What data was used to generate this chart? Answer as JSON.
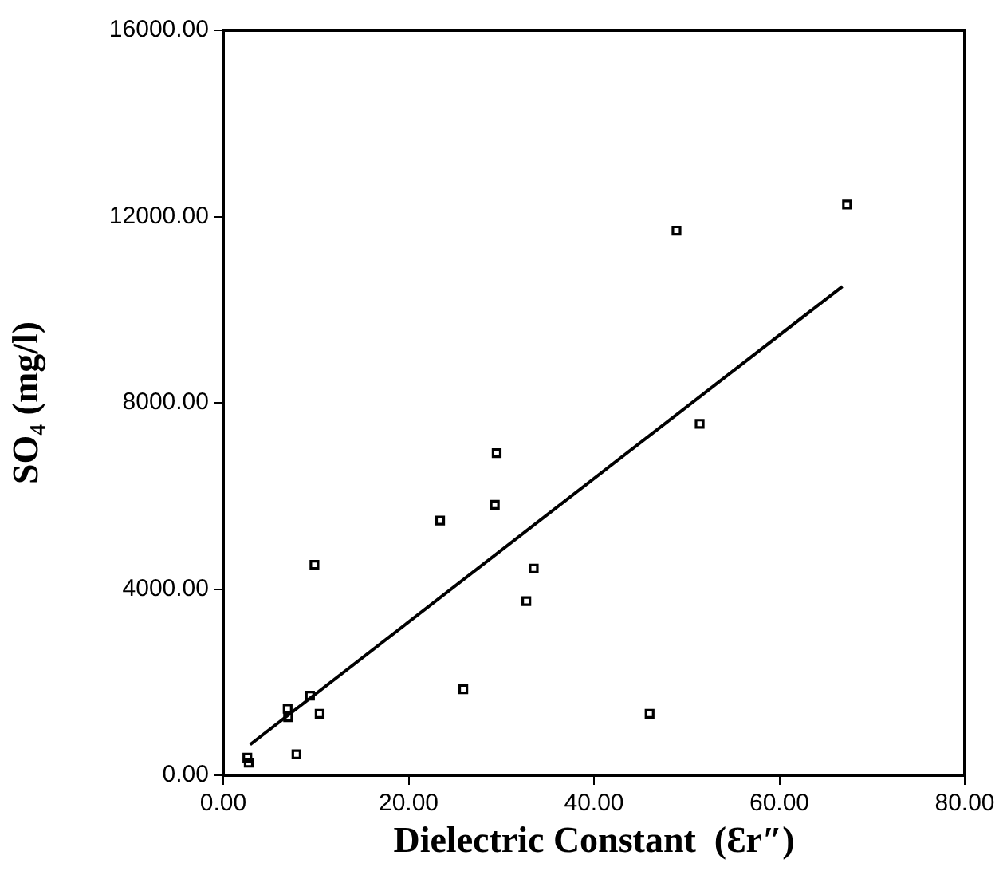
{
  "chart_data": {
    "type": "scatter",
    "xlabel": "Dielectric Constant  (Ɛr″)",
    "ylabel": "SO₄ (mg/l)",
    "x": [
      2.6,
      2.75,
      6.95,
      7.0,
      7.9,
      9.36,
      9.84,
      10.4,
      23.4,
      25.9,
      29.3,
      29.5,
      32.7,
      33.5,
      46.0,
      48.9,
      51.4,
      67.3
    ],
    "series": [
      {
        "type": "scatter",
        "color": "#000000",
        "marker": "square",
        "values": [
          380,
          270,
          1430,
          1250,
          450,
          1710,
          4520,
          1320,
          5470,
          1850,
          5810,
          6920,
          3740,
          4440,
          1320,
          11700,
          7550,
          12260
        ]
      },
      {
        "type": "line",
        "color": "#000000",
        "marker": "none",
        "line_style": "solid",
        "x": [
          2.9,
          66.8
        ],
        "values": [
          660,
          10500
        ]
      }
    ],
    "xlim": [
      0,
      80
    ],
    "ylim": [
      0,
      16000
    ],
    "xticks": [
      {
        "value": 0,
        "label": "0.00"
      },
      {
        "value": 20,
        "label": "20.00"
      },
      {
        "value": 40,
        "label": "40.00"
      },
      {
        "value": 60,
        "label": "60.00"
      },
      {
        "value": 80,
        "label": "80.00"
      }
    ],
    "yticks": [
      {
        "value": 0,
        "label": "0.00"
      },
      {
        "value": 4000,
        "label": "4000.00"
      },
      {
        "value": 8000,
        "label": "8000.00"
      },
      {
        "value": 12000,
        "label": "12000.00"
      },
      {
        "value": 16000,
        "label": "16000.00"
      }
    ],
    "grid": false,
    "legend": false
  }
}
